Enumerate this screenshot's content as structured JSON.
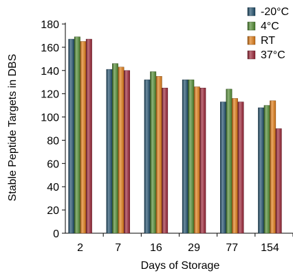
{
  "chart_data": {
    "type": "bar",
    "xlabel": "Days of Storage",
    "ylabel": "Stable Peptide Targets in DBS",
    "ylim": [
      0,
      180
    ],
    "yticks": [
      0,
      20,
      40,
      60,
      80,
      100,
      120,
      140,
      160,
      180
    ],
    "grid": false,
    "legend_position": "top-right",
    "categories": [
      "2",
      "7",
      "16",
      "29",
      "77",
      "154"
    ],
    "series": [
      {
        "name": "-20°C",
        "color": "#1f4e6b",
        "values": [
          167,
          141,
          132,
          132,
          113,
          108
        ]
      },
      {
        "name": "4°C",
        "color": "#4f8a2f",
        "values": [
          169,
          146,
          139,
          132,
          124,
          110
        ]
      },
      {
        "name": "RT",
        "color": "#e07b14",
        "values": [
          165,
          143,
          135,
          126,
          116,
          114
        ]
      },
      {
        "name": "37°C",
        "color": "#9b2335",
        "values": [
          167,
          140,
          125,
          125,
          113,
          90
        ]
      }
    ]
  }
}
